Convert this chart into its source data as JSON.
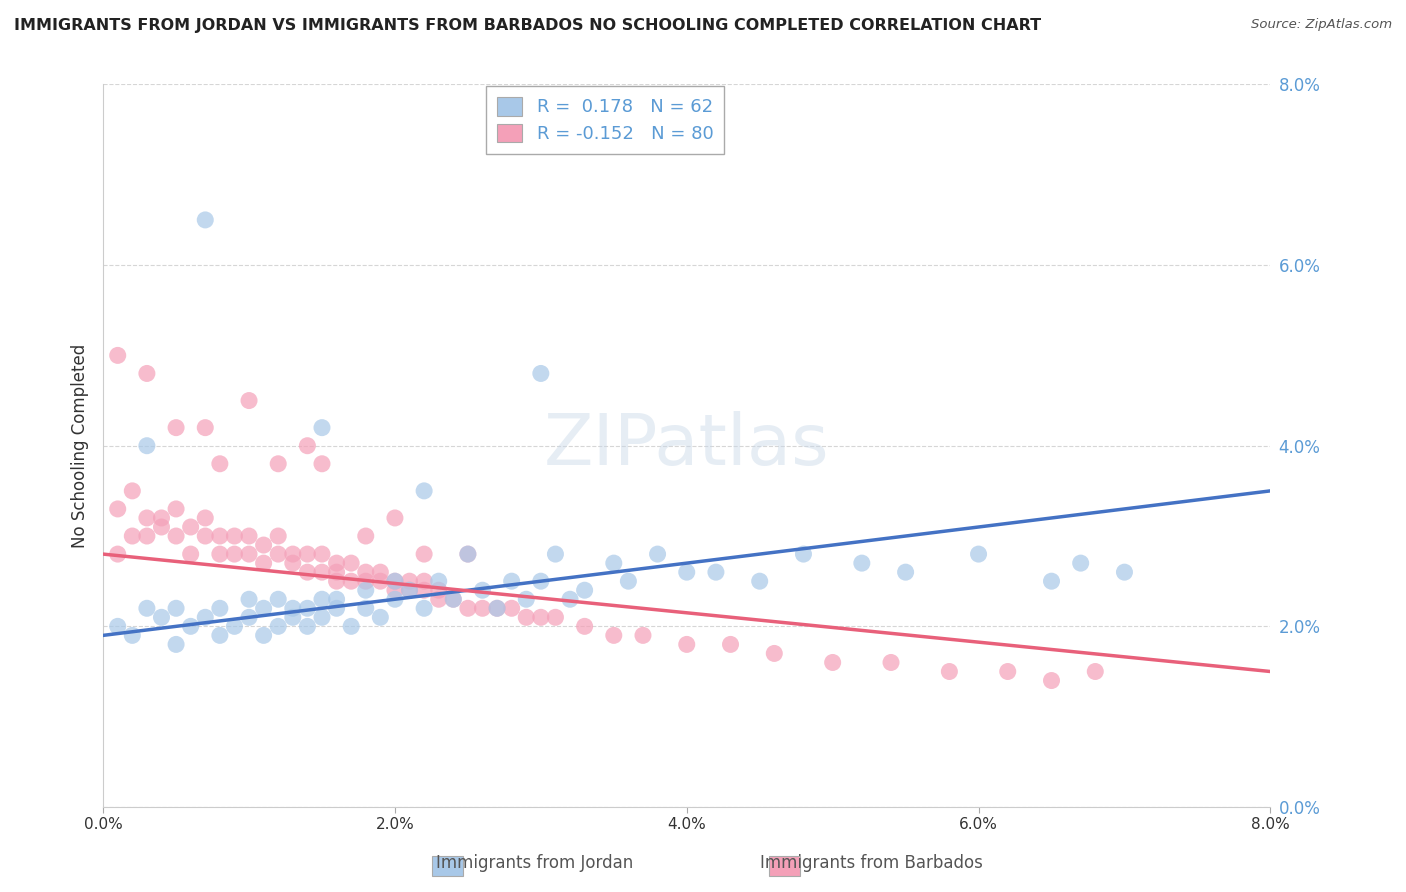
{
  "title": "IMMIGRANTS FROM JORDAN VS IMMIGRANTS FROM BARBADOS NO SCHOOLING COMPLETED CORRELATION CHART",
  "source": "Source: ZipAtlas.com",
  "ylabel": "No Schooling Completed",
  "legend_label1": "Immigrants from Jordan",
  "legend_label2": "Immigrants from Barbados",
  "R1": 0.178,
  "N1": 62,
  "R2": -0.152,
  "N2": 80,
  "xlim": [
    0.0,
    0.08
  ],
  "ylim": [
    0.0,
    0.08
  ],
  "color_jordan": "#a8c8e8",
  "color_barbados": "#f4a0b8",
  "trendline_jordan": "#4472c4",
  "trendline_barbados": "#e8607a",
  "background_color": "#ffffff",
  "tick_color": "#5b9bd5",
  "jordan_scatter_x": [
    0.001,
    0.002,
    0.003,
    0.004,
    0.005,
    0.005,
    0.006,
    0.007,
    0.008,
    0.008,
    0.009,
    0.01,
    0.01,
    0.011,
    0.011,
    0.012,
    0.012,
    0.013,
    0.013,
    0.014,
    0.014,
    0.015,
    0.015,
    0.016,
    0.016,
    0.017,
    0.018,
    0.018,
    0.019,
    0.02,
    0.02,
    0.021,
    0.022,
    0.023,
    0.024,
    0.025,
    0.026,
    0.027,
    0.028,
    0.029,
    0.03,
    0.031,
    0.032,
    0.033,
    0.035,
    0.036,
    0.038,
    0.04,
    0.042,
    0.045,
    0.048,
    0.052,
    0.055,
    0.06,
    0.065,
    0.067,
    0.07,
    0.003,
    0.007,
    0.015,
    0.022,
    0.03
  ],
  "jordan_scatter_y": [
    0.02,
    0.019,
    0.022,
    0.021,
    0.018,
    0.022,
    0.02,
    0.021,
    0.019,
    0.022,
    0.02,
    0.021,
    0.023,
    0.022,
    0.019,
    0.02,
    0.023,
    0.021,
    0.022,
    0.02,
    0.022,
    0.021,
    0.023,
    0.022,
    0.023,
    0.02,
    0.024,
    0.022,
    0.021,
    0.025,
    0.023,
    0.024,
    0.022,
    0.025,
    0.023,
    0.028,
    0.024,
    0.022,
    0.025,
    0.023,
    0.025,
    0.028,
    0.023,
    0.024,
    0.027,
    0.025,
    0.028,
    0.026,
    0.026,
    0.025,
    0.028,
    0.027,
    0.026,
    0.028,
    0.025,
    0.027,
    0.026,
    0.04,
    0.065,
    0.042,
    0.035,
    0.048
  ],
  "barbados_scatter_x": [
    0.001,
    0.001,
    0.002,
    0.002,
    0.003,
    0.003,
    0.004,
    0.004,
    0.005,
    0.005,
    0.006,
    0.006,
    0.007,
    0.007,
    0.008,
    0.008,
    0.009,
    0.009,
    0.01,
    0.01,
    0.011,
    0.011,
    0.012,
    0.012,
    0.013,
    0.013,
    0.014,
    0.014,
    0.015,
    0.015,
    0.016,
    0.016,
    0.017,
    0.017,
    0.018,
    0.018,
    0.019,
    0.019,
    0.02,
    0.02,
    0.021,
    0.021,
    0.022,
    0.022,
    0.023,
    0.023,
    0.024,
    0.025,
    0.026,
    0.027,
    0.028,
    0.029,
    0.03,
    0.031,
    0.033,
    0.035,
    0.037,
    0.04,
    0.043,
    0.046,
    0.05,
    0.054,
    0.058,
    0.062,
    0.065,
    0.068,
    0.001,
    0.003,
    0.007,
    0.012,
    0.015,
    0.02,
    0.025,
    0.01,
    0.014,
    0.005,
    0.008,
    0.018,
    0.022,
    0.016
  ],
  "barbados_scatter_y": [
    0.028,
    0.033,
    0.03,
    0.035,
    0.03,
    0.032,
    0.032,
    0.031,
    0.03,
    0.033,
    0.031,
    0.028,
    0.03,
    0.032,
    0.028,
    0.03,
    0.028,
    0.03,
    0.028,
    0.03,
    0.027,
    0.029,
    0.028,
    0.03,
    0.027,
    0.028,
    0.026,
    0.028,
    0.026,
    0.028,
    0.026,
    0.027,
    0.025,
    0.027,
    0.025,
    0.026,
    0.025,
    0.026,
    0.024,
    0.025,
    0.024,
    0.025,
    0.024,
    0.025,
    0.023,
    0.024,
    0.023,
    0.022,
    0.022,
    0.022,
    0.022,
    0.021,
    0.021,
    0.021,
    0.02,
    0.019,
    0.019,
    0.018,
    0.018,
    0.017,
    0.016,
    0.016,
    0.015,
    0.015,
    0.014,
    0.015,
    0.05,
    0.048,
    0.042,
    0.038,
    0.038,
    0.032,
    0.028,
    0.045,
    0.04,
    0.042,
    0.038,
    0.03,
    0.028,
    0.025
  ],
  "jordan_trend_x": [
    0.0,
    0.08
  ],
  "jordan_trend_y": [
    0.019,
    0.035
  ],
  "barbados_trend_x": [
    0.0,
    0.08
  ],
  "barbados_trend_y": [
    0.028,
    0.015
  ]
}
